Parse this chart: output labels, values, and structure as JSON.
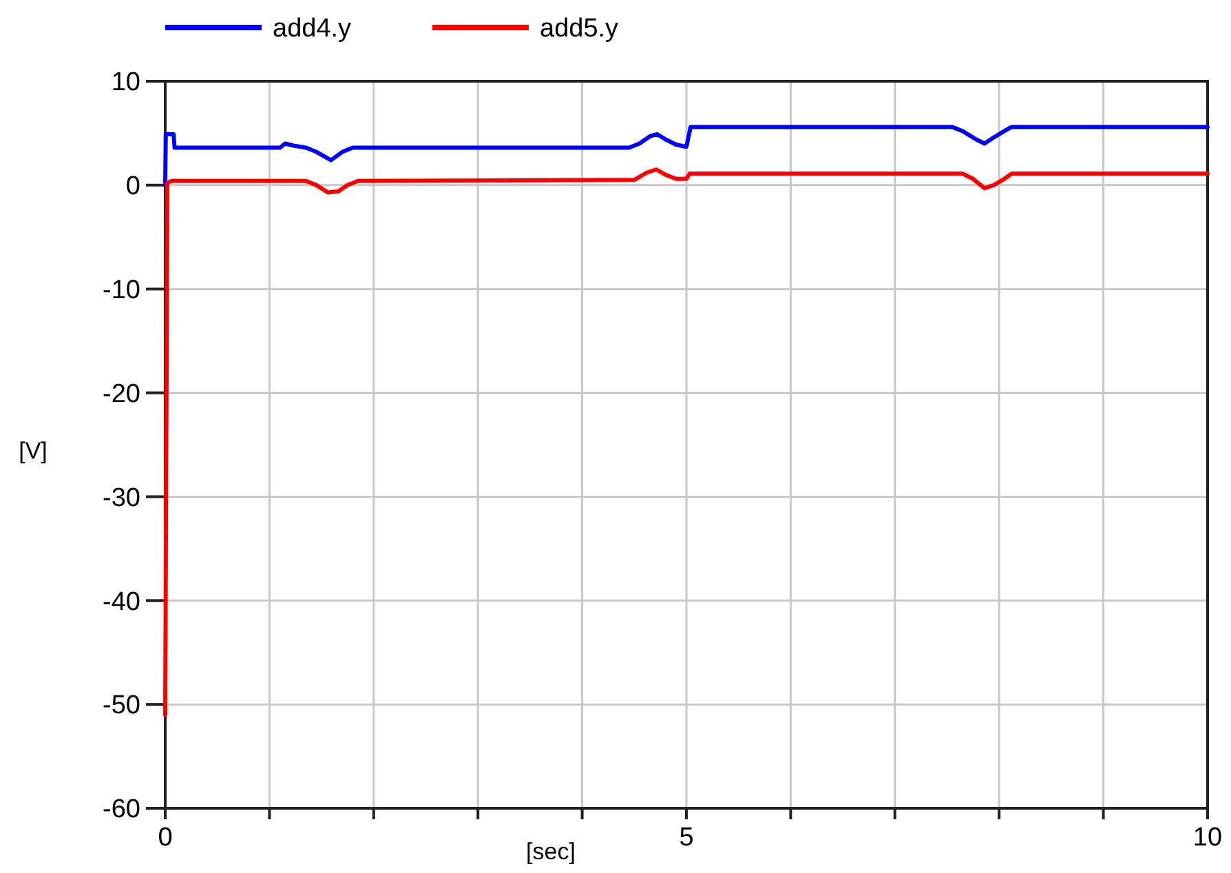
{
  "chart_data": {
    "type": "line",
    "xlabel": "[sec]",
    "ylabel": "[V]",
    "xlim": [
      0,
      10
    ],
    "ylim": [
      -60,
      10
    ],
    "xticks": [
      0,
      {
        "value": 1,
        "label": null
      },
      {
        "value": 2,
        "label": null
      },
      {
        "value": 3,
        "label": null
      },
      {
        "value": 4,
        "label": null
      },
      5,
      {
        "value": 6,
        "label": null
      },
      {
        "value": 7,
        "label": null
      },
      {
        "value": 8,
        "label": null
      },
      {
        "value": 9,
        "label": null
      },
      10
    ],
    "yticks": [
      -60,
      -50,
      -40,
      -30,
      -20,
      -10,
      0,
      10
    ],
    "grid": true,
    "legend": "top left",
    "line_style": "solid",
    "marker": "none",
    "series": [
      {
        "name": "add4.y",
        "color": "#0000ff",
        "x": [
          0,
          0.005,
          0.08,
          0.09,
          1.1,
          1.15,
          1.23,
          1.35,
          1.45,
          1.59,
          1.7,
          1.8,
          4.45,
          4.55,
          4.65,
          4.72,
          4.8,
          4.9,
          4.99,
          5.0,
          5.04,
          7.55,
          7.65,
          7.78,
          7.86,
          7.95,
          8.05,
          8.12,
          10
        ],
        "values": [
          0,
          4.9,
          4.9,
          3.6,
          3.6,
          4.0,
          3.8,
          3.6,
          3.2,
          2.4,
          3.2,
          3.6,
          3.6,
          4.0,
          4.7,
          4.9,
          4.4,
          3.9,
          3.7,
          3.7,
          5.6,
          5.6,
          5.2,
          4.4,
          4.0,
          4.6,
          5.2,
          5.6,
          5.6
        ]
      },
      {
        "name": "add5.y",
        "color": "#ff0000",
        "x": [
          0,
          0.02,
          0.06,
          1.35,
          1.45,
          1.56,
          1.66,
          1.75,
          1.85,
          4.5,
          4.62,
          4.71,
          4.8,
          4.9,
          5.0,
          5.03,
          7.65,
          7.75,
          7.86,
          7.95,
          8.05,
          8.12,
          10
        ],
        "values": [
          -51,
          0.2,
          0.4,
          0.4,
          0,
          -0.7,
          -0.6,
          0,
          0.4,
          0.5,
          1.2,
          1.5,
          1.0,
          0.6,
          0.6,
          1.1,
          1.1,
          0.6,
          -0.3,
          0,
          0.6,
          1.1,
          1.1
        ]
      }
    ]
  }
}
